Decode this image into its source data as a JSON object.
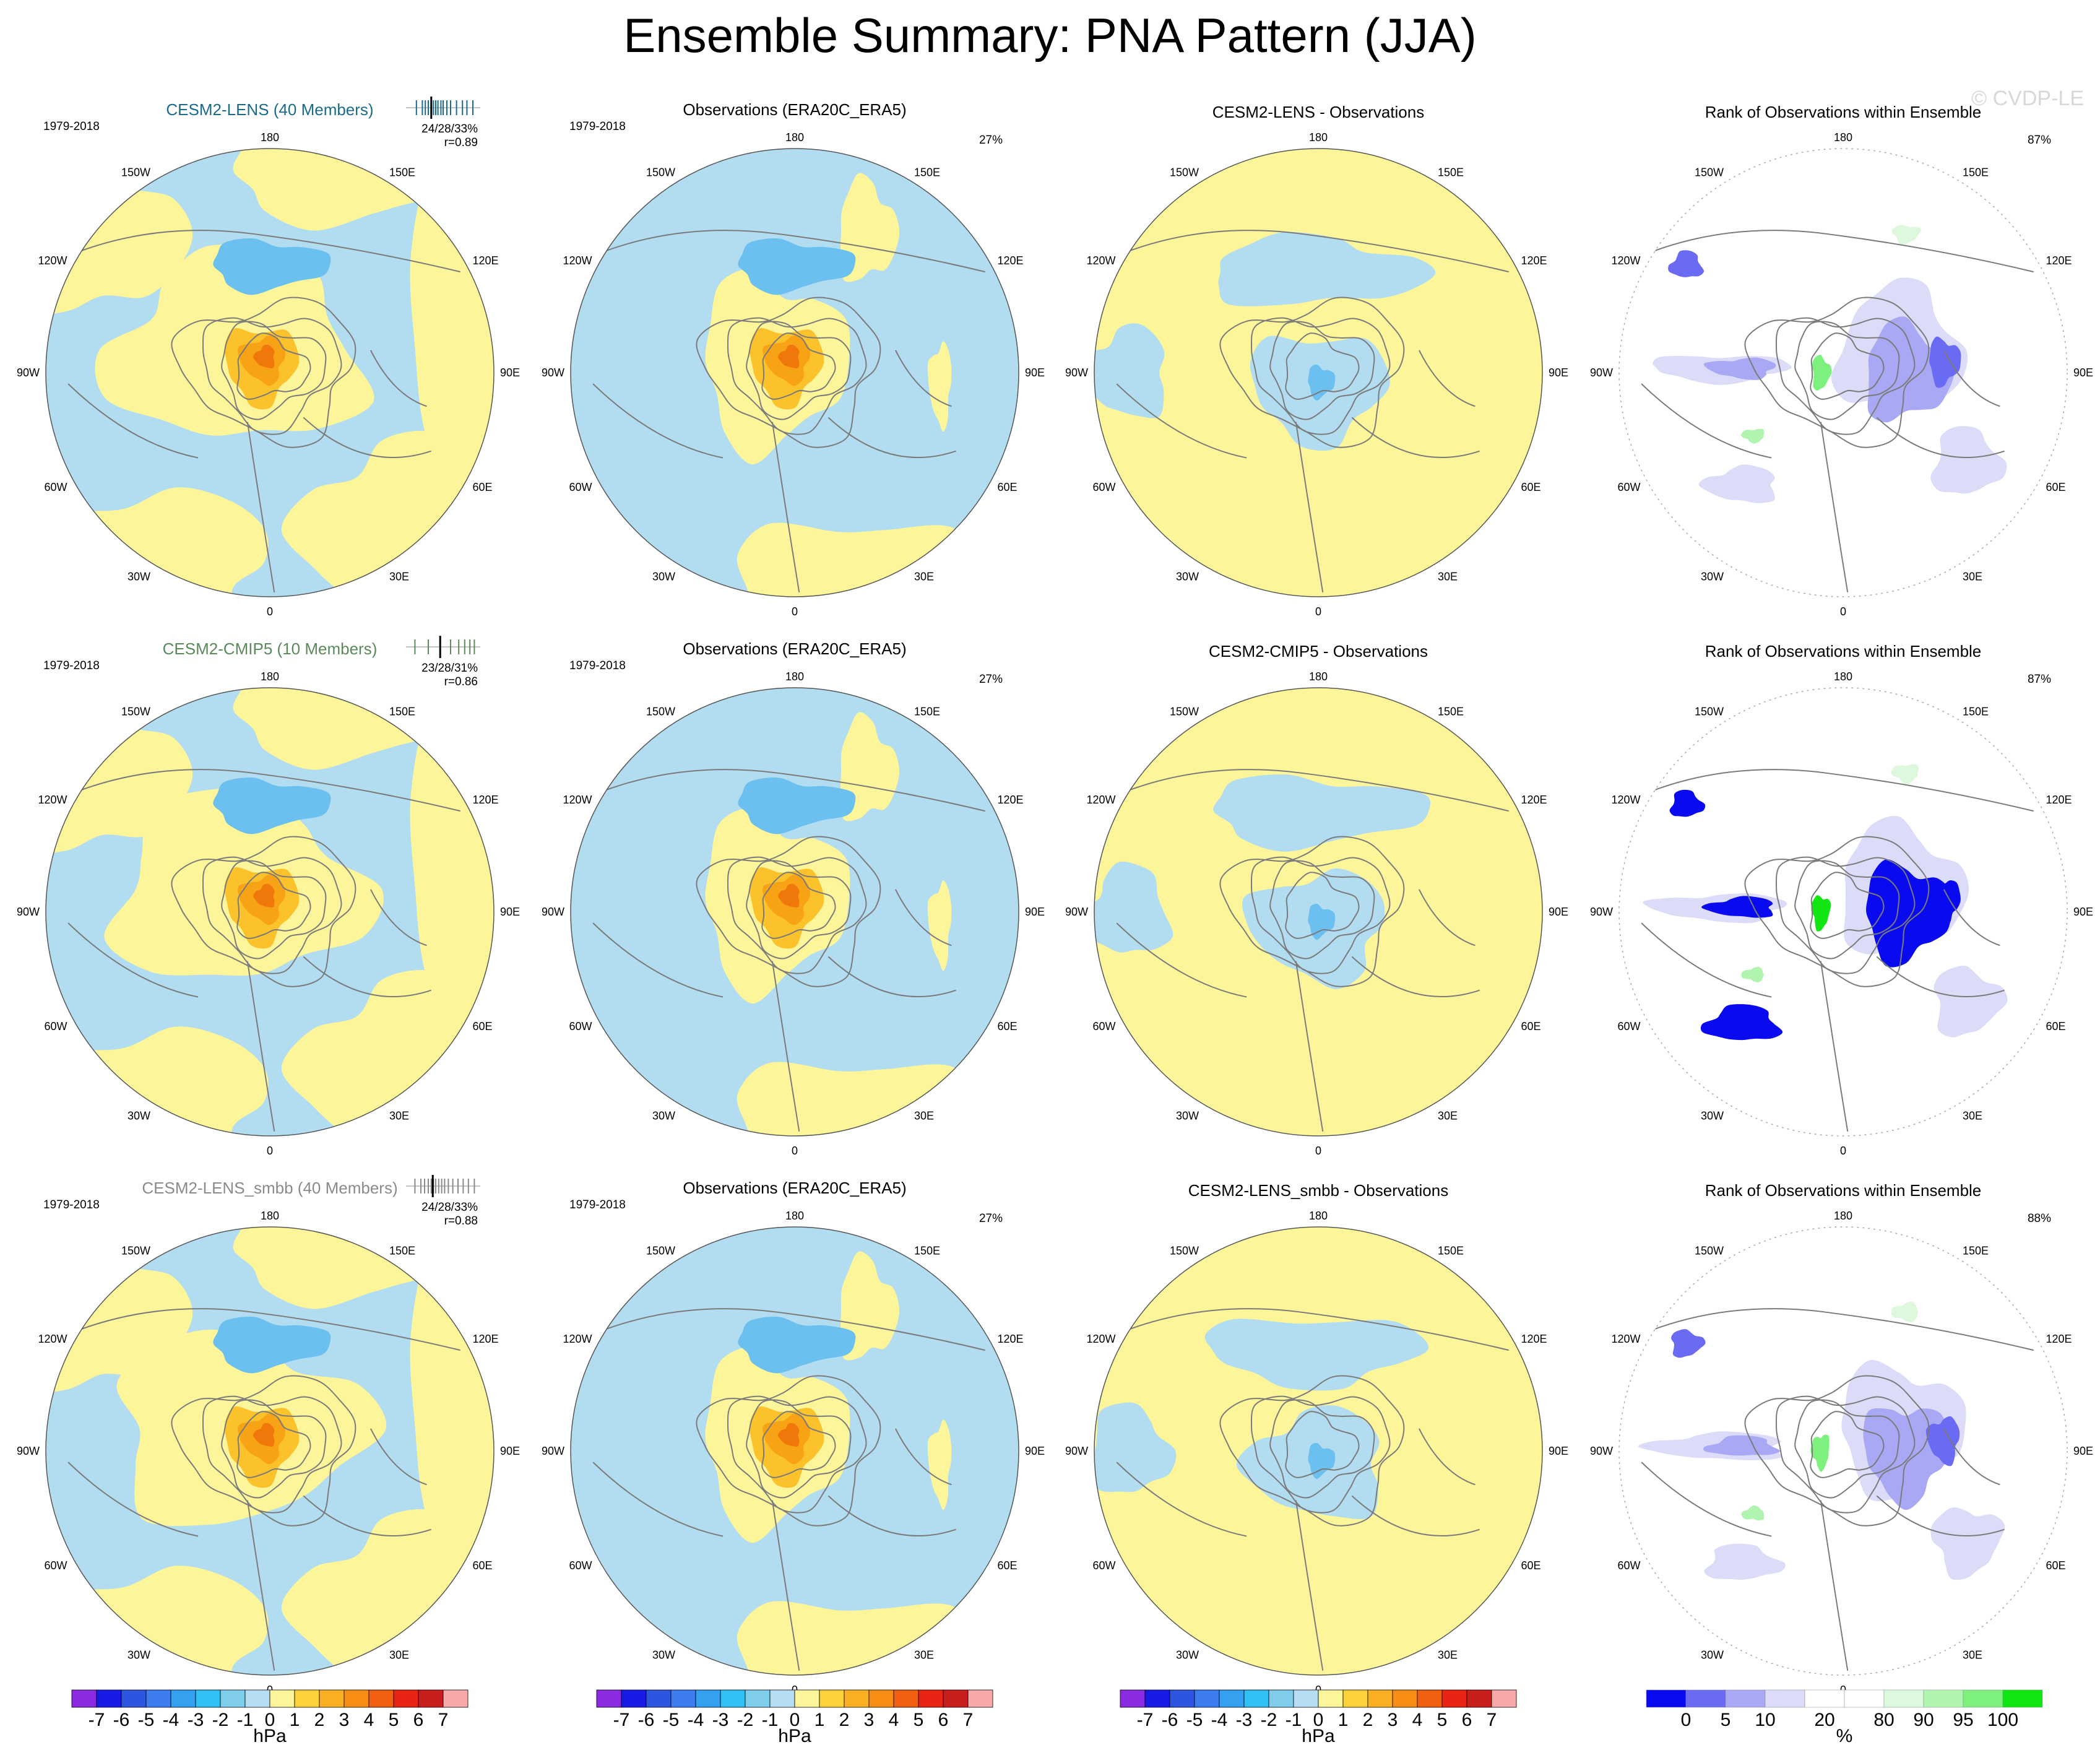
{
  "title": "Ensemble Summary: PNA Pattern (JJA)",
  "watermark": "© CVDP-LE",
  "colors": {
    "ocean_blue": "#b2dcf0",
    "pale_yellow": "#fdf59a",
    "mid_blue": "#6cc0ef",
    "orange_light": "#fcc22c",
    "orange": "#f8a216",
    "orange_dark": "#f0780a",
    "coast": "#7a7a7a",
    "lens_title": "#1a6b8a",
    "cmip5_title": "#5a8a5a",
    "smbb_title": "#8a8a8a"
  },
  "lon_labels": {
    "top": "180",
    "bottom": "0",
    "upper_left": "150W",
    "upper_right": "150E",
    "left_upper": "120W",
    "right_upper": "120E",
    "left": "90W",
    "right": "90E",
    "left_lower": "60W",
    "right_lower": "60E",
    "lower_left": "30W",
    "lower_right": "30E"
  },
  "rows": [
    {
      "model": {
        "title": "CESM2-LENS (40 Members)",
        "title_color": "#1a6b8a",
        "period": "1979-2018",
        "stats": "24/28/33%",
        "corr": "r=0.89",
        "rank_ticks": [
          0.14,
          0.22,
          0.26,
          0.3,
          0.34,
          0.37,
          0.4,
          0.43,
          0.47,
          0.5,
          0.55,
          0.6,
          0.68,
          0.76,
          0.82,
          0.9
        ],
        "rank_obs": 0.34
      },
      "obs": {
        "title": "Observations (ERA20C_ERA5)",
        "period": "1979-2018",
        "pct": "27%"
      },
      "diff": {
        "title": "CESM2-LENS - Observations"
      },
      "rank": {
        "title": "Rank of Observations within Ensemble",
        "pct": "87%"
      }
    },
    {
      "model": {
        "title": "CESM2-CMIP5 (10 Members)",
        "title_color": "#5a8a5a",
        "period": "1979-2018",
        "stats": "23/28/31%",
        "corr": "r=0.86",
        "rank_ticks": [
          0.12,
          0.3,
          0.46,
          0.6,
          0.71,
          0.79,
          0.86,
          0.92
        ],
        "rank_obs": 0.46
      },
      "obs": {
        "title": "Observations (ERA20C_ERA5)",
        "period": "1979-2018",
        "pct": "27%"
      },
      "diff": {
        "title": "CESM2-CMIP5 - Observations"
      },
      "rank": {
        "title": "Rank of Observations within Ensemble",
        "pct": "87%"
      }
    },
    {
      "model": {
        "title": "CESM2-LENS_smbb (40 Members)",
        "title_color": "#8a8a8a",
        "period": "1979-2018",
        "stats": "24/28/33%",
        "corr": "r=0.88",
        "rank_ticks": [
          0.12,
          0.2,
          0.25,
          0.3,
          0.34,
          0.37,
          0.4,
          0.44,
          0.48,
          0.52,
          0.57,
          0.63,
          0.7,
          0.77,
          0.84,
          0.92
        ],
        "rank_obs": 0.36
      },
      "obs": {
        "title": "Observations (ERA20C_ERA5)",
        "period": "1979-2018",
        "pct": "27%"
      },
      "diff": {
        "title": "CESM2-LENS_smbb - Observations"
      },
      "rank": {
        "title": "Rank of Observations within Ensemble",
        "pct": "88%"
      }
    }
  ],
  "colorbar_hpa": {
    "unit": "hPa",
    "labels": [
      "-7",
      "-6",
      "-5",
      "-4",
      "-3",
      "-2",
      "-1",
      "0",
      "1",
      "2",
      "3",
      "4",
      "5",
      "6",
      "7"
    ],
    "colors": [
      "#8a2be2",
      "#1a1ae6",
      "#2e55e0",
      "#3d7cf0",
      "#35a0f0",
      "#2fc0f5",
      "#7fcdeb",
      "#b6def2",
      "#fdf59a",
      "#fcd23a",
      "#fbb024",
      "#f88c14",
      "#f06010",
      "#e82414",
      "#c81e1e",
      "#f8a8a8"
    ]
  },
  "colorbar_rank": {
    "unit": "%",
    "labels": [
      "0",
      "5",
      "10",
      "20",
      "80",
      "90",
      "95",
      "100"
    ],
    "colors": [
      "#0a0af0",
      "#6a6af2",
      "#a8a8f4",
      "#dcdcf8",
      "#ffffff",
      "#ffffff",
      "#def8de",
      "#b0f4b0",
      "#7ef07e",
      "#12e612"
    ]
  },
  "chart_data": {
    "type": "heatmap",
    "title": "Ensemble Summary: PNA Pattern (JJA)",
    "projection": "north-polar stereographic",
    "units": "hPa",
    "color_levels_hpa": [
      -7,
      -6,
      -5,
      -4,
      -3,
      -2,
      -1,
      0,
      1,
      2,
      3,
      4,
      5,
      6,
      7
    ],
    "rank_levels_pct": [
      0,
      5,
      10,
      20,
      80,
      90,
      95,
      100
    ],
    "period": "1979-2018",
    "panels": [
      {
        "row": 1,
        "column": "model",
        "name": "CESM2-LENS (40 Members)",
        "stats": "24/28/33%",
        "r": 0.89
      },
      {
        "row": 1,
        "column": "obs",
        "name": "Observations (ERA20C_ERA5)",
        "pct_variance": 27
      },
      {
        "row": 1,
        "column": "difference",
        "name": "CESM2-LENS - Observations"
      },
      {
        "row": 1,
        "column": "rank",
        "name": "Rank of Observations within Ensemble",
        "pct": 87
      },
      {
        "row": 2,
        "column": "model",
        "name": "CESM2-CMIP5 (10 Members)",
        "stats": "23/28/31%",
        "r": 0.86
      },
      {
        "row": 2,
        "column": "obs",
        "name": "Observations (ERA20C_ERA5)",
        "pct_variance": 27
      },
      {
        "row": 2,
        "column": "difference",
        "name": "CESM2-CMIP5 - Observations"
      },
      {
        "row": 2,
        "column": "rank",
        "name": "Rank of Observations within Ensemble",
        "pct": 87
      },
      {
        "row": 3,
        "column": "model",
        "name": "CESM2-LENS_smbb (40 Members)",
        "stats": "24/28/33%",
        "r": 0.88
      },
      {
        "row": 3,
        "column": "obs",
        "name": "Observations (ERA20C_ERA5)",
        "pct_variance": 27
      },
      {
        "row": 3,
        "column": "difference",
        "name": "CESM2-LENS_smbb - Observations"
      },
      {
        "row": 3,
        "column": "rank",
        "name": "Rank of Observations within Ensemble",
        "pct": 88
      }
    ]
  }
}
